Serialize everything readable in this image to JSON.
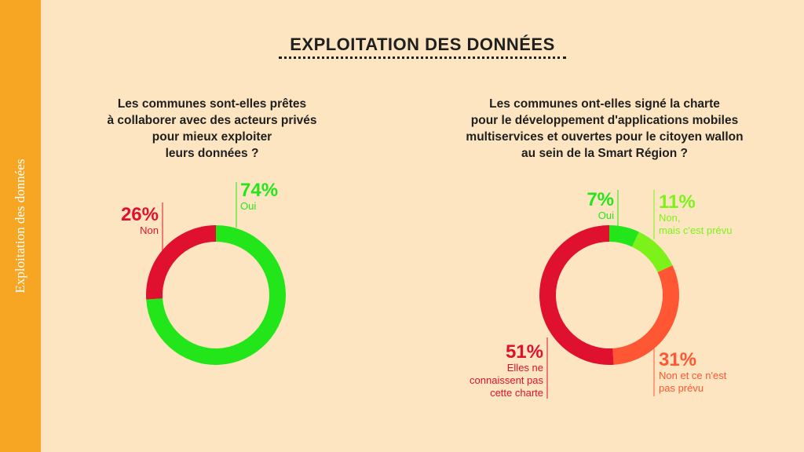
{
  "sidebar": {
    "label": "Exploitation des données"
  },
  "title": "EXPLOITATION DES DONNÉES",
  "colors": {
    "background": "#FCE5C0",
    "sidebar": "#F6A623",
    "green": "#22E61A",
    "lightgreen": "#7CF21A",
    "orange": "#FF5733",
    "red": "#E0102F"
  },
  "chart_data": [
    {
      "type": "pie",
      "title_lines": [
        "Les communes sont-elles prêtes",
        "à collaborer avec des acteurs privés",
        "pour mieux exploiter",
        "leurs données ?"
      ],
      "slices": [
        {
          "pct_label": "74%",
          "label_lines": [
            "Oui"
          ],
          "value": 74,
          "color": "#22E61A"
        },
        {
          "pct_label": "26%",
          "label_lines": [
            "Non"
          ],
          "value": 26,
          "color": "#E0102F"
        }
      ]
    },
    {
      "type": "pie",
      "title_lines": [
        "Les communes ont-elles signé la charte",
        "pour le développement d'applications mobiles",
        "multiservices et ouvertes pour le citoyen wallon",
        "au sein de la Smart Région ?"
      ],
      "slices": [
        {
          "pct_label": "7%",
          "label_lines": [
            "Oui"
          ],
          "value": 7,
          "color": "#22E61A"
        },
        {
          "pct_label": "11%",
          "label_lines": [
            "Non,",
            "mais c'est prévu"
          ],
          "value": 11,
          "color": "#7CF21A"
        },
        {
          "pct_label": "31%",
          "label_lines": [
            "Non et ce n'est",
            "pas prévu"
          ],
          "value": 31,
          "color": "#FF5733"
        },
        {
          "pct_label": "51%",
          "label_lines": [
            "Elles ne",
            "connaissent pas",
            "cette charte"
          ],
          "value": 51,
          "color": "#E0102F"
        }
      ]
    }
  ]
}
